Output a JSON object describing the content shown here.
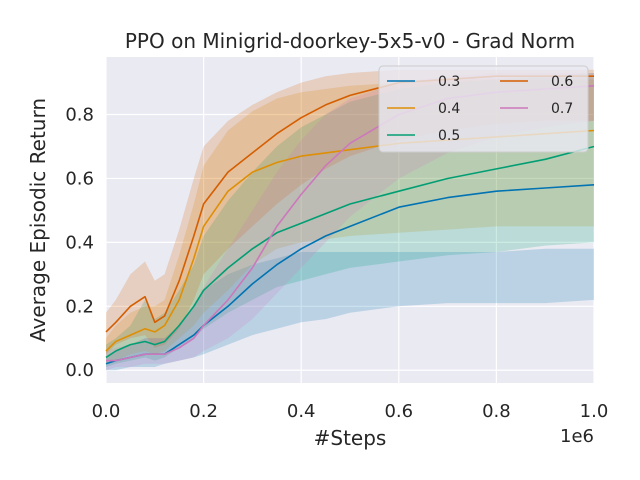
{
  "chart_data": {
    "type": "line",
    "title": "PPO on Minigrid-doorkey-5x5-v0 - Grad Norm",
    "xlabel": "#Steps",
    "ylabel": "Average Episodic Return",
    "x_offset_label": "1e6",
    "xlim": [
      0,
      1.0
    ],
    "ylim": [
      -0.04,
      0.98
    ],
    "xticks": [
      0.0,
      0.2,
      0.4,
      0.6,
      0.8,
      1.0
    ],
    "xtick_labels": [
      "0.0",
      "0.2",
      "0.4",
      "0.6",
      "0.8",
      "1.0"
    ],
    "yticks": [
      0.0,
      0.2,
      0.4,
      0.6,
      0.8
    ],
    "ytick_labels": [
      "0.0",
      "0.2",
      "0.4",
      "0.6",
      "0.8"
    ],
    "grid": true,
    "legend_position": "top-right",
    "x": [
      0.0,
      0.02,
      0.05,
      0.08,
      0.1,
      0.12,
      0.15,
      0.18,
      0.2,
      0.25,
      0.3,
      0.35,
      0.4,
      0.45,
      0.5,
      0.6,
      0.7,
      0.8,
      0.9,
      1.0
    ],
    "series": [
      {
        "name": "0.3",
        "color": "#0173b2",
        "mean": [
          0.02,
          0.03,
          0.04,
          0.05,
          0.05,
          0.05,
          0.08,
          0.11,
          0.14,
          0.2,
          0.27,
          0.33,
          0.38,
          0.42,
          0.45,
          0.51,
          0.54,
          0.56,
          0.57,
          0.58
        ],
        "low": [
          0.0,
          0.0,
          0.01,
          0.01,
          0.01,
          0.02,
          0.03,
          0.04,
          0.05,
          0.08,
          0.11,
          0.13,
          0.15,
          0.16,
          0.18,
          0.2,
          0.21,
          0.21,
          0.21,
          0.22
        ],
        "high": [
          0.04,
          0.06,
          0.08,
          0.1,
          0.1,
          0.1,
          0.14,
          0.2,
          0.25,
          0.3,
          0.33,
          0.35,
          0.37,
          0.37,
          0.37,
          0.37,
          0.37,
          0.37,
          0.38,
          0.38
        ]
      },
      {
        "name": "0.4",
        "color": "#de8f05",
        "mean": [
          0.06,
          0.09,
          0.11,
          0.13,
          0.12,
          0.14,
          0.22,
          0.35,
          0.45,
          0.56,
          0.62,
          0.65,
          0.67,
          0.68,
          0.69,
          0.71,
          0.72,
          0.73,
          0.74,
          0.75
        ],
        "low": [
          0.02,
          0.03,
          0.05,
          0.06,
          0.05,
          0.06,
          0.1,
          0.14,
          0.18,
          0.25,
          0.33,
          0.38,
          0.4,
          0.41,
          0.42,
          0.43,
          0.44,
          0.45,
          0.45,
          0.45
        ],
        "high": [
          0.1,
          0.14,
          0.18,
          0.2,
          0.2,
          0.22,
          0.36,
          0.52,
          0.64,
          0.75,
          0.81,
          0.85,
          0.87,
          0.88,
          0.89,
          0.9,
          0.91,
          0.91,
          0.91,
          0.91
        ]
      },
      {
        "name": "0.5",
        "color": "#029e73",
        "mean": [
          0.04,
          0.06,
          0.08,
          0.09,
          0.08,
          0.09,
          0.14,
          0.2,
          0.25,
          0.32,
          0.38,
          0.43,
          0.46,
          0.49,
          0.52,
          0.56,
          0.6,
          0.63,
          0.66,
          0.7
        ],
        "low": [
          0.01,
          0.02,
          0.03,
          0.04,
          0.03,
          0.04,
          0.07,
          0.1,
          0.13,
          0.18,
          0.22,
          0.26,
          0.28,
          0.3,
          0.32,
          0.34,
          0.36,
          0.37,
          0.39,
          0.4
        ],
        "high": [
          0.08,
          0.1,
          0.14,
          0.22,
          0.16,
          0.18,
          0.25,
          0.33,
          0.42,
          0.53,
          0.62,
          0.7,
          0.76,
          0.8,
          0.84,
          0.88,
          0.9,
          0.91,
          0.92,
          0.93
        ]
      },
      {
        "name": "0.6",
        "color": "#d55e00",
        "mean": [
          0.12,
          0.15,
          0.2,
          0.23,
          0.15,
          0.17,
          0.28,
          0.42,
          0.52,
          0.62,
          0.68,
          0.74,
          0.79,
          0.83,
          0.86,
          0.9,
          0.91,
          0.92,
          0.92,
          0.92
        ],
        "low": [
          0.05,
          0.08,
          0.1,
          0.11,
          0.07,
          0.08,
          0.13,
          0.22,
          0.3,
          0.38,
          0.45,
          0.52,
          0.58,
          0.63,
          0.67,
          0.72,
          0.75,
          0.77,
          0.78,
          0.78
        ],
        "high": [
          0.18,
          0.22,
          0.3,
          0.34,
          0.28,
          0.3,
          0.44,
          0.6,
          0.7,
          0.78,
          0.83,
          0.87,
          0.9,
          0.92,
          0.93,
          0.94,
          0.94,
          0.94,
          0.94,
          0.94
        ]
      },
      {
        "name": "0.7",
        "color": "#cc78bc",
        "mean": [
          0.03,
          0.03,
          0.04,
          0.05,
          0.05,
          0.05,
          0.07,
          0.1,
          0.14,
          0.22,
          0.32,
          0.45,
          0.55,
          0.64,
          0.71,
          0.8,
          0.85,
          0.87,
          0.88,
          0.89
        ],
        "low": [
          0.0,
          0.01,
          0.01,
          0.02,
          0.02,
          0.02,
          0.03,
          0.04,
          0.06,
          0.1,
          0.16,
          0.24,
          0.32,
          0.4,
          0.48,
          0.6,
          0.68,
          0.73,
          0.76,
          0.78
        ],
        "high": [
          0.06,
          0.07,
          0.08,
          0.1,
          0.1,
          0.1,
          0.14,
          0.2,
          0.26,
          0.38,
          0.5,
          0.62,
          0.72,
          0.8,
          0.85,
          0.9,
          0.92,
          0.93,
          0.93,
          0.93
        ]
      }
    ]
  }
}
